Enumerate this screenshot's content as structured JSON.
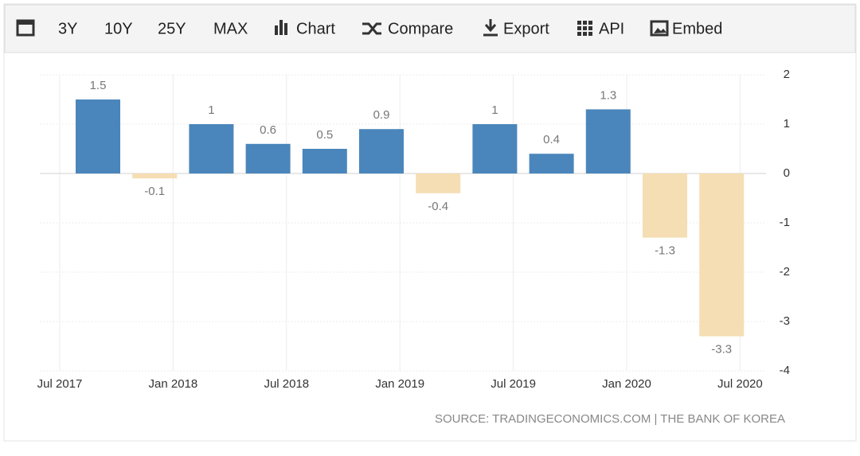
{
  "toolbar": {
    "items": [
      "3Y",
      "10Y",
      "25Y",
      "MAX",
      "Chart",
      "Compare",
      "Export",
      "API",
      "Embed"
    ]
  },
  "chart_data": {
    "type": "bar",
    "categories": [
      null,
      null,
      null,
      null,
      null,
      null,
      null,
      null,
      null,
      null,
      null,
      null
    ],
    "values": [
      1.5,
      -0.1,
      1,
      0.6,
      0.5,
      0.9,
      -0.4,
      1,
      0.4,
      1.3,
      -1.3,
      -3.3
    ],
    "color_positive": "#4a86bb",
    "color_negative": "#f5deb3",
    "xtick_labels": [
      "Jul 2017",
      "Jan 2018",
      "Jul 2018",
      "Jan 2019",
      "Jul 2019",
      "Jan 2020",
      "Jul 2020"
    ],
    "ylim": [
      -4,
      2
    ],
    "yticks": [
      2,
      1,
      0,
      -1,
      -2,
      -3,
      -4
    ],
    "grid": true,
    "source": "SOURCE: TRADINGECONOMICS.COM | THE BANK OF KOREA"
  }
}
